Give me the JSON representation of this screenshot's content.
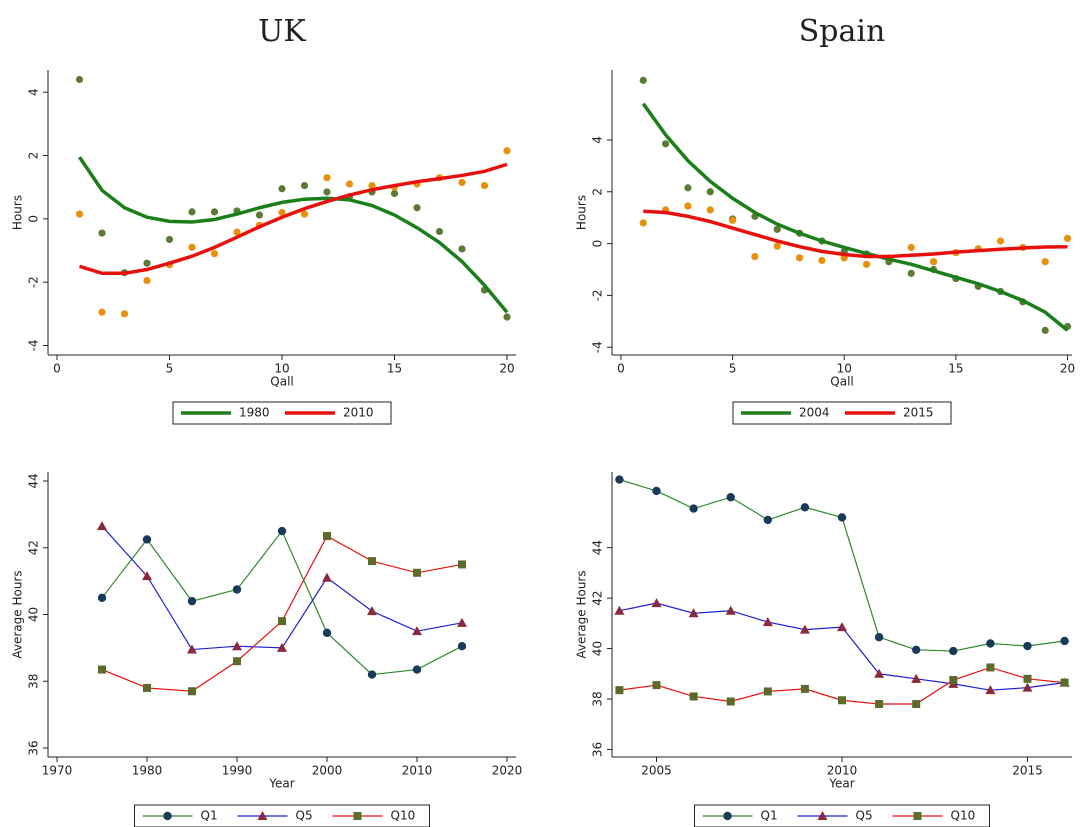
{
  "chart_data": [
    {
      "type": "fit",
      "title": "UK",
      "x_label": "Qall",
      "y_label": "Hours",
      "x": [
        1,
        2,
        3,
        4,
        5,
        6,
        7,
        8,
        9,
        10,
        11,
        12,
        13,
        14,
        15,
        16,
        17,
        18,
        19,
        20
      ],
      "xlim": [
        -0.4,
        20.4
      ],
      "xticks": [
        0,
        5,
        10,
        15,
        20
      ],
      "ylim": [
        -4.3,
        4.7
      ],
      "yticks": [
        -4,
        -2,
        0,
        2,
        4
      ],
      "series": [
        {
          "name": "1980",
          "color": "#1a7f1a",
          "point_color": "#5b7a35",
          "values": [
            1.95,
            0.9,
            0.35,
            0.05,
            -0.08,
            -0.1,
            -0.02,
            0.15,
            0.35,
            0.52,
            0.62,
            0.65,
            0.6,
            0.42,
            0.12,
            -0.28,
            -0.75,
            -1.35,
            -2.1,
            -2.95
          ],
          "points": [
            4.4,
            -0.45,
            -1.7,
            -1.4,
            -0.65,
            0.22,
            0.22,
            0.25,
            0.12,
            0.95,
            1.05,
            0.85,
            0.7,
            0.85,
            0.8,
            0.35,
            -0.4,
            -0.95,
            -2.25,
            -3.1
          ]
        },
        {
          "name": "2010",
          "color": "#e8100c",
          "point_color": "#e8900c",
          "values": [
            -1.5,
            -1.72,
            -1.72,
            -1.6,
            -1.4,
            -1.18,
            -0.9,
            -0.58,
            -0.25,
            0.05,
            0.32,
            0.55,
            0.75,
            0.92,
            1.05,
            1.17,
            1.27,
            1.37,
            1.5,
            1.72
          ],
          "points": [
            0.15,
            -2.95,
            -3.0,
            -1.95,
            -1.45,
            -0.9,
            -1.1,
            -0.42,
            -0.2,
            0.2,
            0.15,
            1.3,
            1.1,
            1.05,
            1.0,
            1.1,
            1.3,
            1.15,
            1.05,
            2.15
          ]
        }
      ]
    },
    {
      "type": "fit",
      "title": "Spain",
      "x_label": "Qall",
      "y_label": "Hours",
      "x": [
        1,
        2,
        3,
        4,
        5,
        6,
        7,
        8,
        9,
        10,
        11,
        12,
        13,
        14,
        15,
        16,
        17,
        18,
        19,
        20
      ],
      "xlim": [
        -0.4,
        20.2
      ],
      "xticks": [
        0,
        5,
        10,
        15,
        20
      ],
      "ylim": [
        -4.3,
        6.7
      ],
      "yticks": [
        -4,
        -2,
        0,
        2,
        4
      ],
      "series": [
        {
          "name": "2004",
          "color": "#1a7f1a",
          "point_color": "#5b7a35",
          "values": [
            5.4,
            4.2,
            3.2,
            2.4,
            1.75,
            1.2,
            0.75,
            0.4,
            0.1,
            -0.15,
            -0.38,
            -0.6,
            -0.8,
            -1.05,
            -1.3,
            -1.55,
            -1.85,
            -2.2,
            -2.65,
            -3.35
          ],
          "points": [
            6.3,
            3.85,
            2.15,
            2.0,
            0.95,
            1.05,
            0.55,
            0.4,
            0.1,
            -0.3,
            -0.4,
            -0.7,
            -1.15,
            -1.0,
            -1.35,
            -1.65,
            -1.85,
            -2.25,
            -3.35,
            -3.2
          ]
        },
        {
          "name": "2015",
          "color": "#e8100c",
          "point_color": "#e8900c",
          "values": [
            1.25,
            1.2,
            1.05,
            0.85,
            0.6,
            0.35,
            0.1,
            -0.12,
            -0.3,
            -0.42,
            -0.5,
            -0.5,
            -0.45,
            -0.4,
            -0.33,
            -0.27,
            -0.22,
            -0.17,
            -0.13,
            -0.12
          ],
          "points": [
            0.8,
            1.3,
            1.45,
            1.3,
            0.9,
            -0.5,
            -0.1,
            -0.55,
            -0.65,
            -0.55,
            -0.8,
            -0.55,
            -0.15,
            -0.7,
            -0.35,
            -0.2,
            0.1,
            -0.15,
            -0.7,
            0.2
          ]
        }
      ]
    },
    {
      "type": "line",
      "x_label": "Year",
      "y_label": "Average Hours",
      "x": [
        1975,
        1980,
        1985,
        1990,
        1995,
        2000,
        2005,
        2010,
        2015
      ],
      "xlim": [
        1969,
        2021
      ],
      "xticks": [
        1970,
        1980,
        1990,
        2000,
        2010,
        2020
      ],
      "ylim": [
        35.73,
        44.27
      ],
      "yticks": [
        36,
        38,
        40,
        42,
        44
      ],
      "series": [
        {
          "name": "Q1",
          "color": "#2e8b2e",
          "marker": "circle",
          "marker_color": "#1a3a5c",
          "values": [
            40.5,
            42.25,
            40.4,
            40.75,
            42.5,
            39.45,
            38.2,
            38.35,
            39.05
          ]
        },
        {
          "name": "Q5",
          "color": "#1f1fd8",
          "marker": "triangle",
          "marker_color": "#8b2a3a",
          "values": [
            42.65,
            41.15,
            38.95,
            39.05,
            39.0,
            41.1,
            40.1,
            39.5,
            39.75
          ]
        },
        {
          "name": "Q10",
          "color": "#e8100c",
          "marker": "square",
          "marker_color": "#5a6b2a",
          "values": [
            38.35,
            37.8,
            37.7,
            38.6,
            39.8,
            42.35,
            41.6,
            41.25,
            41.5
          ]
        }
      ]
    },
    {
      "type": "line",
      "x_label": "Year",
      "y_label": "Average Hours",
      "x": [
        2004,
        2005,
        2006,
        2007,
        2008,
        2009,
        2010,
        2011,
        2012,
        2013,
        2014,
        2015,
        2016
      ],
      "xlim": [
        2003.8,
        2016.2
      ],
      "xticks": [
        2005,
        2010,
        2015
      ],
      "ylim": [
        35.7,
        47.0
      ],
      "yticks": [
        36,
        38,
        40,
        42,
        44
      ],
      "series": [
        {
          "name": "Q1",
          "color": "#2e8b2e",
          "marker": "circle",
          "marker_color": "#1a3a5c",
          "values": [
            46.7,
            46.25,
            45.55,
            46.0,
            45.1,
            45.6,
            45.2,
            40.45,
            39.95,
            39.9,
            40.2,
            40.1,
            40.3
          ]
        },
        {
          "name": "Q5",
          "color": "#1f1fd8",
          "marker": "triangle",
          "marker_color": "#8b2a3a",
          "values": [
            41.5,
            41.8,
            41.4,
            41.5,
            41.05,
            40.75,
            40.85,
            39.0,
            38.8,
            38.6,
            38.35,
            38.45,
            38.65
          ]
        },
        {
          "name": "Q10",
          "color": "#e8100c",
          "marker": "square",
          "marker_color": "#5a6b2a",
          "values": [
            38.35,
            38.55,
            38.1,
            37.9,
            38.3,
            38.4,
            37.95,
            37.8,
            37.8,
            38.75,
            39.25,
            38.8,
            38.65
          ]
        }
      ]
    }
  ]
}
